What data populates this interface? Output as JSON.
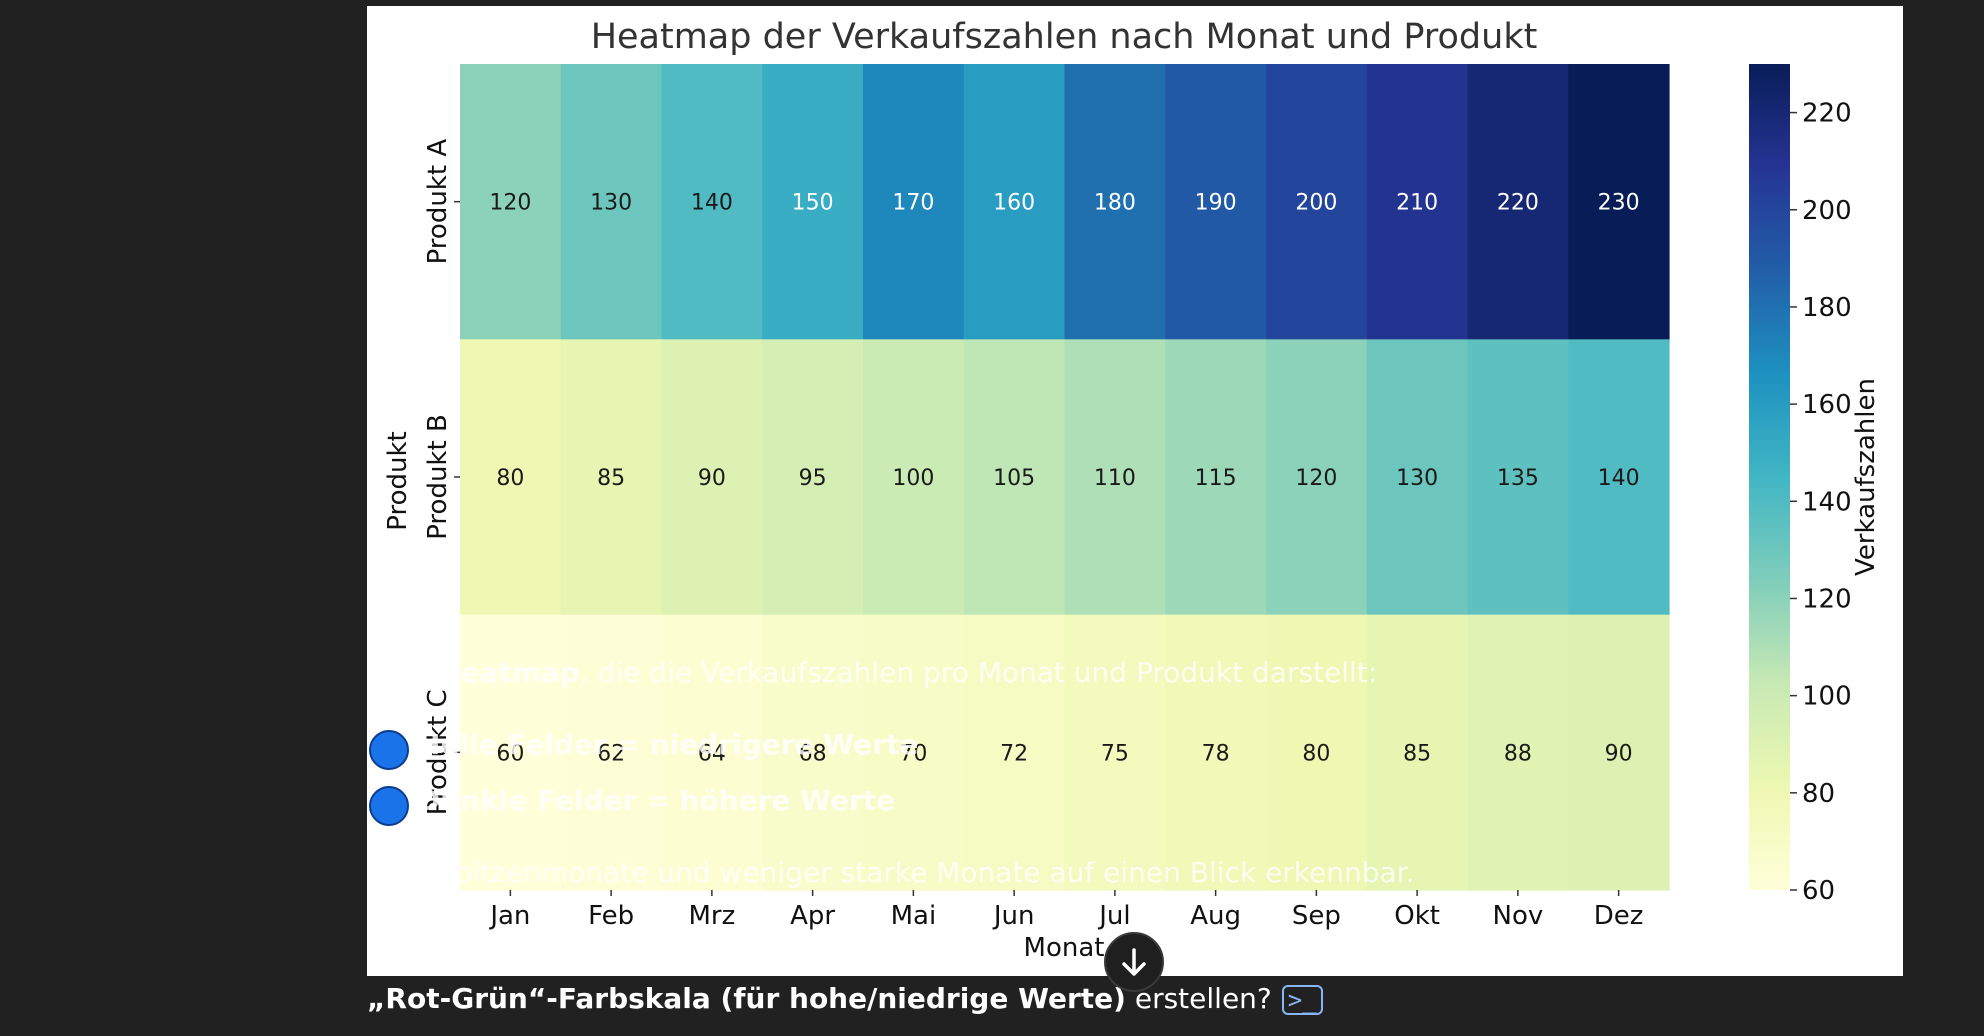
{
  "chart_data": {
    "type": "heatmap",
    "title": "Heatmap der Verkaufszahlen nach Monat und Produkt",
    "xlabel": "Monat",
    "ylabel": "Produkt",
    "colorbar_label": "Verkaufszahlen",
    "colorbar_range": [
      60,
      230
    ],
    "colorbar_ticks": [
      60,
      80,
      100,
      120,
      140,
      160,
      180,
      200,
      220
    ],
    "colormap": "YlGnBu",
    "x": [
      "Jan",
      "Feb",
      "Mrz",
      "Apr",
      "Mai",
      "Jun",
      "Jul",
      "Aug",
      "Sep",
      "Okt",
      "Nov",
      "Dez"
    ],
    "y": [
      "Produkt A",
      "Produkt B",
      "Produkt C"
    ],
    "values": [
      [
        120,
        130,
        140,
        150,
        170,
        160,
        180,
        190,
        200,
        210,
        220,
        230
      ],
      [
        80,
        85,
        90,
        95,
        100,
        105,
        110,
        115,
        120,
        130,
        135,
        140
      ],
      [
        60,
        62,
        64,
        68,
        70,
        72,
        75,
        78,
        80,
        85,
        88,
        90
      ]
    ]
  },
  "overlay": {
    "line1_bold": "Heatmap",
    "line1_rest": ", die die Verkaufszahlen pro Monat und Produkt darstellt:",
    "line2": "Helle Felder = niedrigere Werte",
    "line3": "Dunkle Felder = höhere Werte",
    "line4": "Spitzenmonate und weniger starke Monate auf einen Blick erkennbar."
  },
  "chat": {
    "bold_text": "„Rot-Grün“-Farbskala (für hohe/niedrige Werte)",
    "rest_text": " erstellen?",
    "code_icon": ">_"
  },
  "icons": {
    "scroll_down": "arrow-down-icon",
    "bullet": "blue-circle-icon",
    "code": "code-icon"
  }
}
